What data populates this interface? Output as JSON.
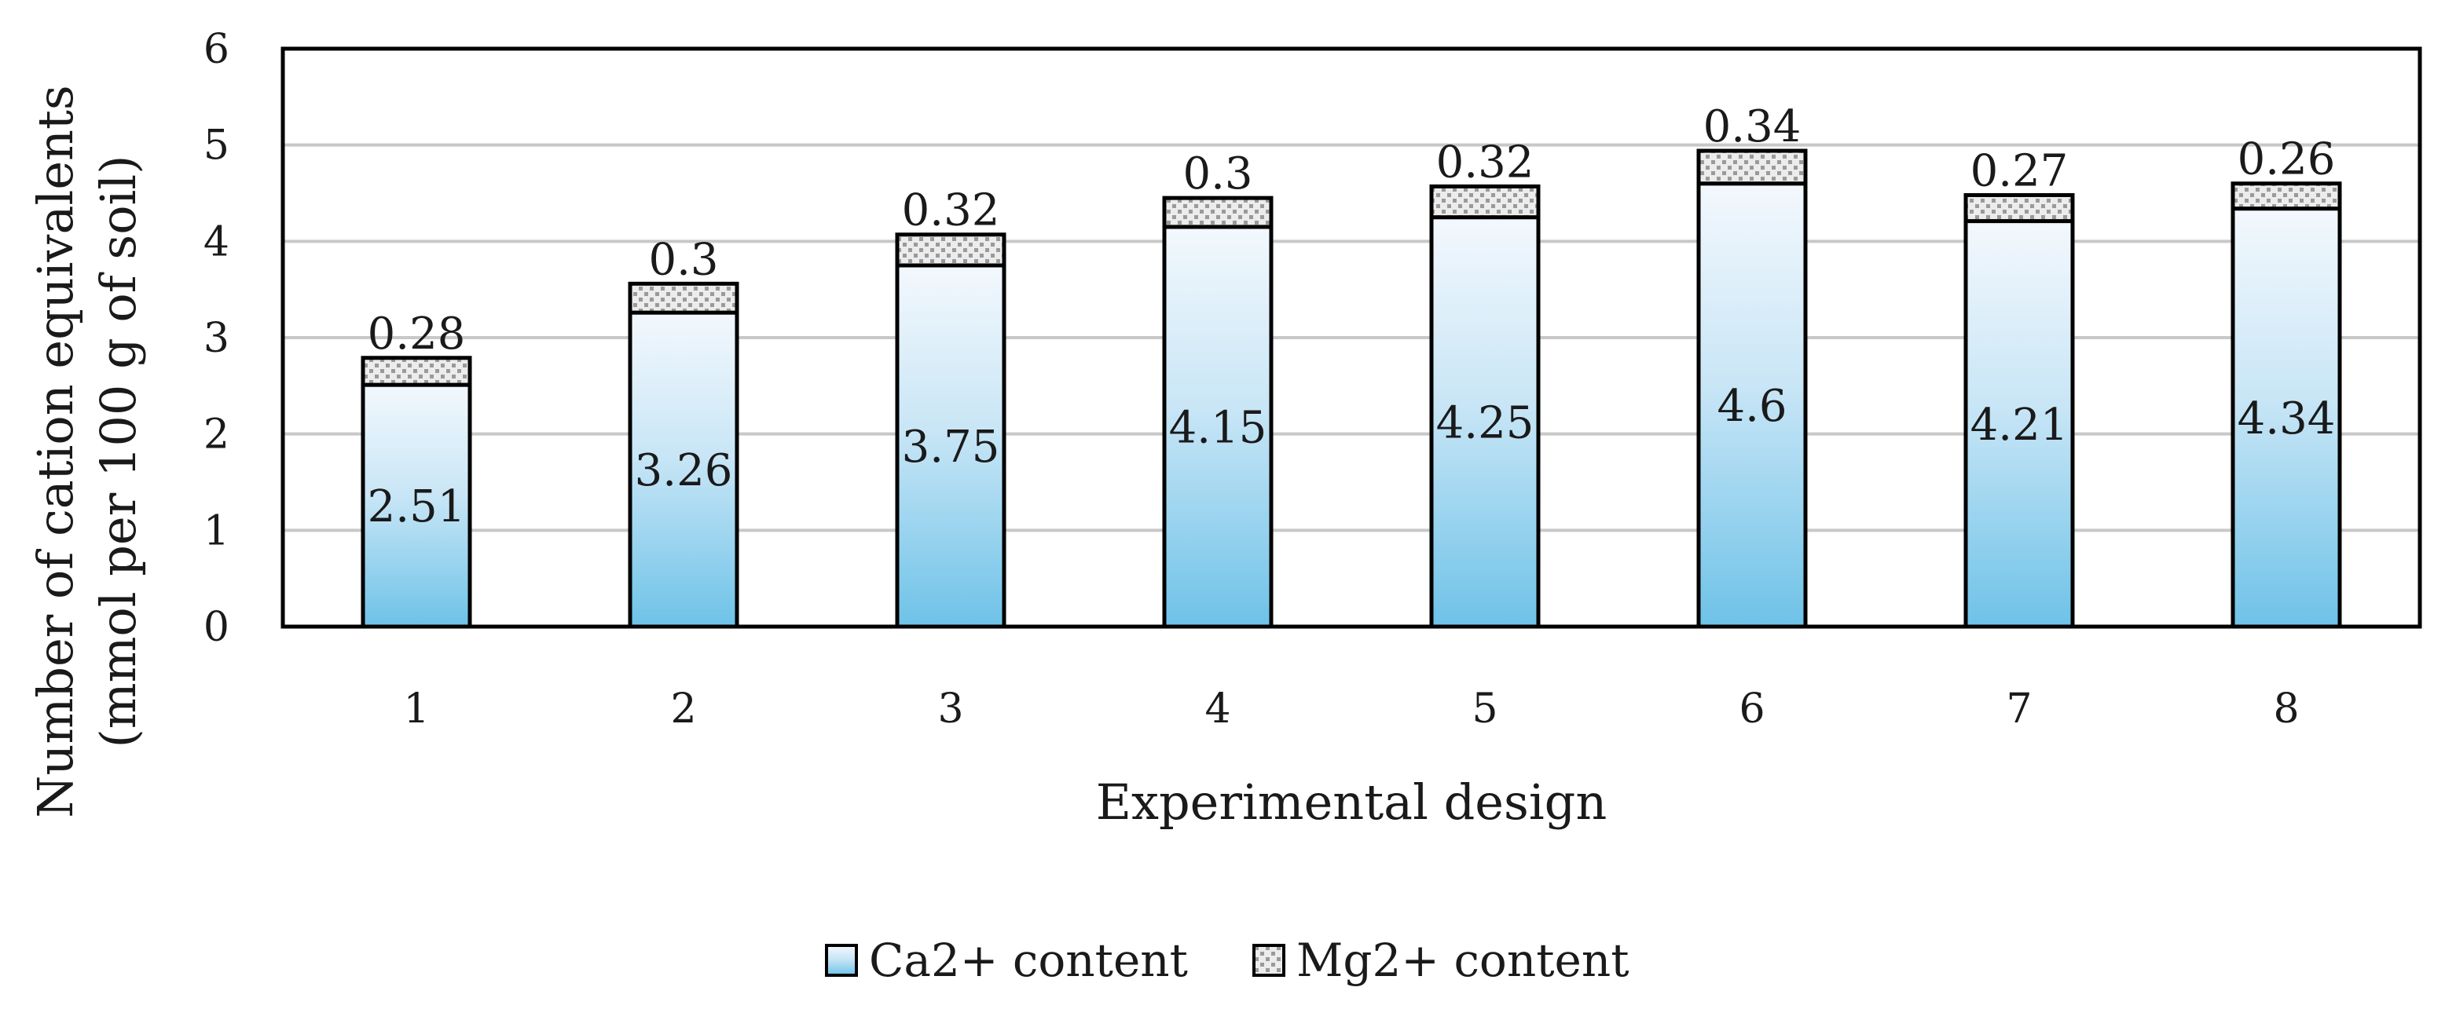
{
  "chart_data": {
    "type": "bar",
    "stacked": true,
    "title": "",
    "xlabel": "Experimental design",
    "ylabel_lines": [
      "Number of cation equivalents",
      "(mmol per 100 g of soil)"
    ],
    "categories": [
      "1",
      "2",
      "3",
      "4",
      "5",
      "6",
      "7",
      "8"
    ],
    "ylim": [
      0,
      6
    ],
    "yticks": [
      "0",
      "1",
      "2",
      "3",
      "4",
      "5",
      "6"
    ],
    "grid": true,
    "legend_position": "bottom",
    "series": [
      {
        "name": "Ca2+ content",
        "values": [
          2.51,
          3.26,
          3.75,
          4.15,
          4.25,
          4.6,
          4.21,
          4.34
        ],
        "labels": [
          "2.51",
          "3.26",
          "3.75",
          "4.15",
          "4.25",
          "4.6",
          "4.21",
          "4.34"
        ],
        "fill": "gradient-blue"
      },
      {
        "name": "Mg2+ content",
        "values": [
          0.28,
          0.3,
          0.32,
          0.3,
          0.32,
          0.34,
          0.27,
          0.26
        ],
        "labels": [
          "0.28",
          "0.3",
          "0.32",
          "0.3",
          "0.32",
          "0.34",
          "0.27",
          "0.26"
        ],
        "fill": "dotted-gray"
      }
    ]
  },
  "colors": {
    "ca_top": "#f3f8fd",
    "ca_bottom": "#6ec2e8",
    "mg_base": "#ececec",
    "mg_dot": "#9a9a9a",
    "grid": "#c8c8c8",
    "border": "#000000"
  }
}
